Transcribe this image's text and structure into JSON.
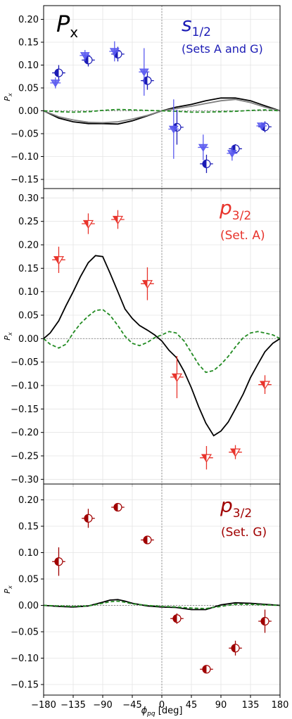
{
  "chart_data": [
    {
      "type": "scatter",
      "panel_title": "P_x",
      "annotation": "(Sets A and G)",
      "state_label": "s_{1/2}",
      "ylabel": "P_x",
      "xlim": [
        -180,
        180
      ],
      "ylim": [
        -0.17,
        0.23
      ],
      "yticks": [
        0.2,
        0.15,
        0.1,
        0.05,
        0.0,
        -0.05,
        -0.1,
        -0.15
      ],
      "colors": {
        "primary": "#1b1bb5",
        "secondary": "#5b5bf0"
      },
      "series": [
        {
          "marker": "circle-half",
          "color": "#1b1bb5",
          "points": [
            {
              "x": -157,
              "y": 0.083,
              "yerr": 0.017,
              "xerr": 10
            },
            {
              "x": -112,
              "y": 0.111,
              "yerr": 0.014,
              "xerr": 10
            },
            {
              "x": -67,
              "y": 0.124,
              "yerr": 0.016,
              "xerr": 10
            },
            {
              "x": -22,
              "y": 0.066,
              "yerr": 0.02,
              "xerr": 10
            },
            {
              "x": 23,
              "y": -0.036,
              "yerr": 0.038,
              "xerr": 10
            },
            {
              "x": 68,
              "y": -0.116,
              "yerr": 0.02,
              "xerr": 10
            },
            {
              "x": 112,
              "y": -0.083,
              "yerr": 0.01,
              "xerr": 10
            },
            {
              "x": 157,
              "y": -0.035,
              "yerr": 0.012,
              "xerr": 10
            }
          ]
        },
        {
          "marker": "triangle-down",
          "color": "#5b5bf0",
          "points": [
            {
              "x": -162,
              "y": 0.061,
              "yerr": 0.012,
              "xerr": 8
            },
            {
              "x": -117,
              "y": 0.121,
              "yerr": 0.012,
              "xerr": 8
            },
            {
              "x": -72,
              "y": 0.13,
              "yerr": 0.022,
              "xerr": 8
            },
            {
              "x": -27,
              "y": 0.085,
              "yerr": 0.052,
              "xerr": 8
            },
            {
              "x": 18,
              "y": -0.04,
              "yerr": 0.065,
              "xerr": 8
            },
            {
              "x": 63,
              "y": -0.08,
              "yerr": 0.028,
              "xerr": 8
            },
            {
              "x": 107,
              "y": -0.093,
              "yerr": 0.016,
              "xerr": 8
            },
            {
              "x": 152,
              "y": -0.033,
              "yerr": 0.008,
              "xerr": 8
            }
          ]
        }
      ],
      "curves": [
        {
          "style": "solid",
          "color": "#000000",
          "x": [
            -180,
            -157,
            -135,
            -112,
            -90,
            -67,
            -45,
            -22,
            0,
            22,
            45,
            67,
            90,
            112,
            135,
            157,
            180
          ],
          "y": [
            0,
            -0.016,
            -0.024,
            -0.028,
            -0.028,
            -0.029,
            -0.022,
            -0.011,
            0,
            0.008,
            0.014,
            0.022,
            0.028,
            0.028,
            0.022,
            0.011,
            0
          ]
        },
        {
          "style": "solid",
          "color": "#808080",
          "x": [
            -180,
            -157,
            -135,
            -112,
            -90,
            -67,
            -45,
            -22,
            0,
            22,
            45,
            67,
            90,
            112,
            135,
            157,
            180
          ],
          "y": [
            0,
            -0.013,
            -0.02,
            -0.025,
            -0.026,
            -0.024,
            -0.018,
            -0.01,
            0,
            0.005,
            0.01,
            0.016,
            0.022,
            0.025,
            0.018,
            0.008,
            0
          ]
        },
        {
          "style": "dashed",
          "color": "#228b22",
          "x": [
            -180,
            -157,
            -135,
            -112,
            -90,
            -67,
            -45,
            -22,
            0,
            22,
            45,
            67,
            90,
            112,
            135,
            157,
            180
          ],
          "y": [
            0,
            -0.002,
            -0.003,
            -0.002,
            0.001,
            0.003,
            0.002,
            0.001,
            0,
            -0.001,
            -0.003,
            -0.003,
            -0.002,
            -0.001,
            0.001,
            0.002,
            0
          ]
        }
      ]
    },
    {
      "type": "scatter",
      "annotation": "(Set. A)",
      "state_label": "p_{3/2}",
      "ylabel": "P_x",
      "xlim": [
        -180,
        180
      ],
      "ylim": [
        -0.31,
        0.32
      ],
      "yticks": [
        0.3,
        0.25,
        0.2,
        0.15,
        0.1,
        0.05,
        0.0,
        -0.05,
        -0.1,
        -0.15,
        -0.2,
        -0.25,
        -0.3
      ],
      "colors": {
        "primary": "#e8332b"
      },
      "series": [
        {
          "marker": "triangle-down-half",
          "color": "#e8332b",
          "points": [
            {
              "x": -157,
              "y": 0.168,
              "yerr": 0.028,
              "xerr": 10
            },
            {
              "x": -112,
              "y": 0.245,
              "yerr": 0.022,
              "xerr": 10
            },
            {
              "x": -67,
              "y": 0.254,
              "yerr": 0.02,
              "xerr": 10
            },
            {
              "x": -22,
              "y": 0.117,
              "yerr": 0.035,
              "xerr": 10
            },
            {
              "x": 23,
              "y": -0.082,
              "yerr": 0.045,
              "xerr": 10
            },
            {
              "x": 68,
              "y": -0.254,
              "yerr": 0.025,
              "xerr": 10
            },
            {
              "x": 112,
              "y": -0.242,
              "yerr": 0.015,
              "xerr": 10
            },
            {
              "x": 157,
              "y": -0.098,
              "yerr": 0.02,
              "xerr": 10
            }
          ]
        }
      ],
      "curves": [
        {
          "style": "solid",
          "color": "#000000",
          "x": [
            -180,
            -170,
            -157,
            -146,
            -135,
            -124,
            -112,
            -101,
            -90,
            -79,
            -67,
            -56,
            -45,
            -34,
            -22,
            -11,
            0,
            11,
            22,
            34,
            45,
            56,
            67,
            79,
            90,
            101,
            112,
            124,
            135,
            146,
            157,
            169,
            180
          ],
          "y": [
            0,
            0.012,
            0.038,
            0.07,
            0.1,
            0.132,
            0.162,
            0.177,
            0.175,
            0.14,
            0.1,
            0.063,
            0.043,
            0.028,
            0.018,
            0.008,
            -0.005,
            -0.025,
            -0.04,
            -0.07,
            -0.105,
            -0.145,
            -0.18,
            -0.207,
            -0.197,
            -0.178,
            -0.15,
            -0.118,
            -0.083,
            -0.055,
            -0.028,
            -0.01,
            0
          ]
        },
        {
          "style": "dashed",
          "color": "#228b22",
          "x": [
            -180,
            -170,
            -157,
            -146,
            -135,
            -124,
            -112,
            -101,
            -90,
            -79,
            -67,
            -56,
            -45,
            -34,
            -22,
            -11,
            0,
            11,
            22,
            34,
            45,
            56,
            67,
            79,
            90,
            101,
            112,
            124,
            135,
            146,
            157,
            169,
            180
          ],
          "y": [
            0,
            -0.012,
            -0.02,
            -0.012,
            0.012,
            0.032,
            0.048,
            0.06,
            0.062,
            0.05,
            0.028,
            0.005,
            -0.01,
            -0.015,
            -0.008,
            0.002,
            0.008,
            0.015,
            0.012,
            -0.005,
            -0.03,
            -0.055,
            -0.072,
            -0.068,
            -0.055,
            -0.038,
            -0.018,
            0.002,
            0.012,
            0.015,
            0.012,
            0.008,
            0
          ]
        }
      ]
    },
    {
      "type": "scatter",
      "annotation": "(Set. G)",
      "state_label": "p_{3/2}",
      "ylabel": "P_x",
      "xlabel": "ϕ_pq [deg]",
      "xlim": [
        -180,
        180
      ],
      "ylim": [
        -0.17,
        0.23
      ],
      "yticks": [
        0.2,
        0.15,
        0.1,
        0.05,
        0.0,
        -0.05,
        -0.1,
        -0.15
      ],
      "xticks": [
        -180,
        -135,
        -90,
        -45,
        0,
        45,
        90,
        135,
        180
      ],
      "colors": {
        "primary": "#a00000"
      },
      "series": [
        {
          "marker": "circle-half",
          "color": "#a00000",
          "points": [
            {
              "x": -157,
              "y": 0.083,
              "yerr": 0.027,
              "xerr": 10
            },
            {
              "x": -112,
              "y": 0.165,
              "yerr": 0.018,
              "xerr": 10
            },
            {
              "x": -67,
              "y": 0.186,
              "yerr": 0.008,
              "xerr": 10
            },
            {
              "x": -22,
              "y": 0.124,
              "yerr": 0.007,
              "xerr": 10
            },
            {
              "x": 23,
              "y": -0.025,
              "yerr": 0.01,
              "xerr": 10
            },
            {
              "x": 68,
              "y": -0.121,
              "yerr": 0.006,
              "xerr": 10
            },
            {
              "x": 112,
              "y": -0.081,
              "yerr": 0.014,
              "xerr": 10
            },
            {
              "x": 157,
              "y": -0.03,
              "yerr": 0.022,
              "xerr": 10
            }
          ]
        }
      ],
      "curves": [
        {
          "style": "solid",
          "color": "#000000",
          "x": [
            -180,
            -157,
            -135,
            -112,
            -90,
            -79,
            -67,
            -56,
            -45,
            -22,
            0,
            22,
            45,
            67,
            90,
            112,
            135,
            157,
            180
          ],
          "y": [
            0,
            -0.002,
            -0.003,
            -0.001,
            0.006,
            0.01,
            0.011,
            0.008,
            0.004,
            -0.001,
            -0.003,
            -0.004,
            -0.008,
            -0.008,
            0.001,
            0.005,
            0.004,
            0.002,
            0
          ]
        },
        {
          "style": "dashed",
          "color": "#228b22",
          "x": [
            -180,
            -157,
            -135,
            -112,
            -90,
            -79,
            -67,
            -56,
            -45,
            -22,
            0,
            22,
            45,
            67,
            90,
            112,
            135,
            157,
            180
          ],
          "y": [
            0,
            -0.001,
            -0.002,
            -0.001,
            0.004,
            0.007,
            0.008,
            0.006,
            0.003,
            0,
            -0.002,
            -0.003,
            -0.005,
            -0.006,
            -0.002,
            0.002,
            0.002,
            0.001,
            0
          ]
        }
      ]
    }
  ]
}
